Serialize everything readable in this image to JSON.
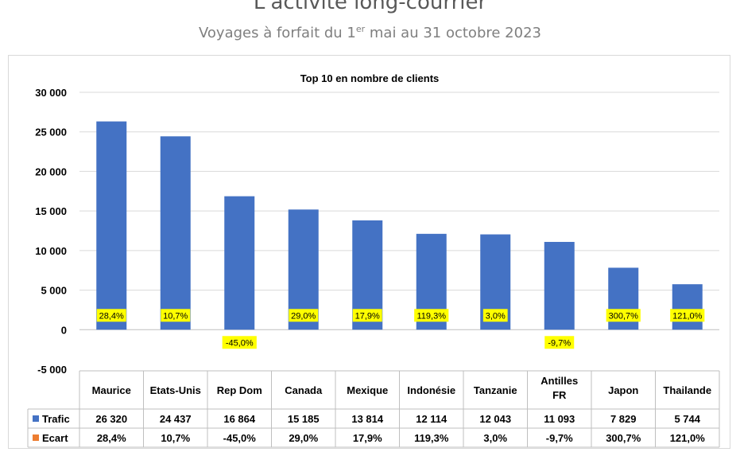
{
  "header": {
    "title": "L'activité long-courrier",
    "subtitle_pre": "Voyages à forfait du 1",
    "subtitle_sup": "er",
    "subtitle_post": " mai au 31 octobre 2023"
  },
  "chart_data": {
    "type": "bar",
    "title": "Top 10 en nombre de clients",
    "categories": [
      "Maurice",
      "Etats-Unis",
      "Rep Dom",
      "Canada",
      "Mexique",
      "Indonésie",
      "Tanzanie",
      "Antilles FR",
      "Japon",
      "Thailande"
    ],
    "series": [
      {
        "name": "Trafic",
        "color": "#4472c4",
        "values": [
          26320,
          24437,
          16864,
          15185,
          13814,
          12114,
          12043,
          11093,
          7829,
          5744
        ],
        "table_values": [
          "26 320",
          "24 437",
          "16 864",
          "15 185",
          "13 814",
          "12 114",
          "12 043",
          "11 093",
          "7 829",
          "5 744"
        ]
      },
      {
        "name": "Ecart",
        "color": "#ed7d31",
        "values": [
          28.4,
          10.7,
          -45.0,
          29.0,
          17.9,
          119.3,
          3.0,
          -9.7,
          300.7,
          121.0
        ],
        "table_values": [
          "28,4%",
          "10,7%",
          "-45,0%",
          "29,0%",
          "17,9%",
          "119,3%",
          "3,0%",
          "-9,7%",
          "300,7%",
          "121,0%"
        ]
      }
    ],
    "yticks": [
      "30 000",
      "25 000",
      "20 000",
      "15 000",
      "10 000",
      "5 000",
      "0",
      "-5 000"
    ],
    "ylim": [
      -5000,
      30000
    ],
    "label_highlight": "#ffff00",
    "grid": true
  }
}
